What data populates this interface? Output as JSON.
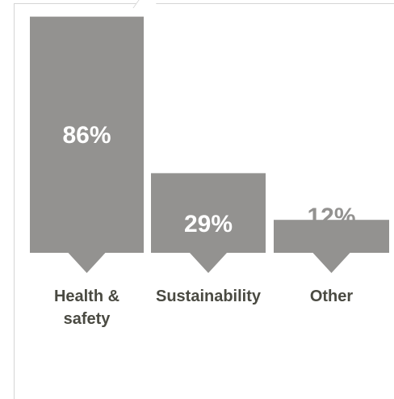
{
  "chart_data": {
    "type": "bar",
    "categories": [
      "Health & safety",
      "Sustainability",
      "Other"
    ],
    "category_lines": [
      [
        "Health &",
        "safety"
      ],
      [
        "Sustainability"
      ],
      [
        "Other"
      ]
    ],
    "values": [
      86,
      29,
      12
    ],
    "value_labels": [
      "86%",
      "29%",
      "12%"
    ],
    "title": "",
    "xlabel": "",
    "ylabel": "",
    "ylim": [
      0,
      100
    ],
    "grid": false,
    "legend": "none",
    "colors": {
      "bar": "#939290",
      "label_inside": "#ffffff",
      "label_outside": "#939290",
      "category_text": "#4a4a42",
      "frame": "#d4d4d4"
    }
  }
}
